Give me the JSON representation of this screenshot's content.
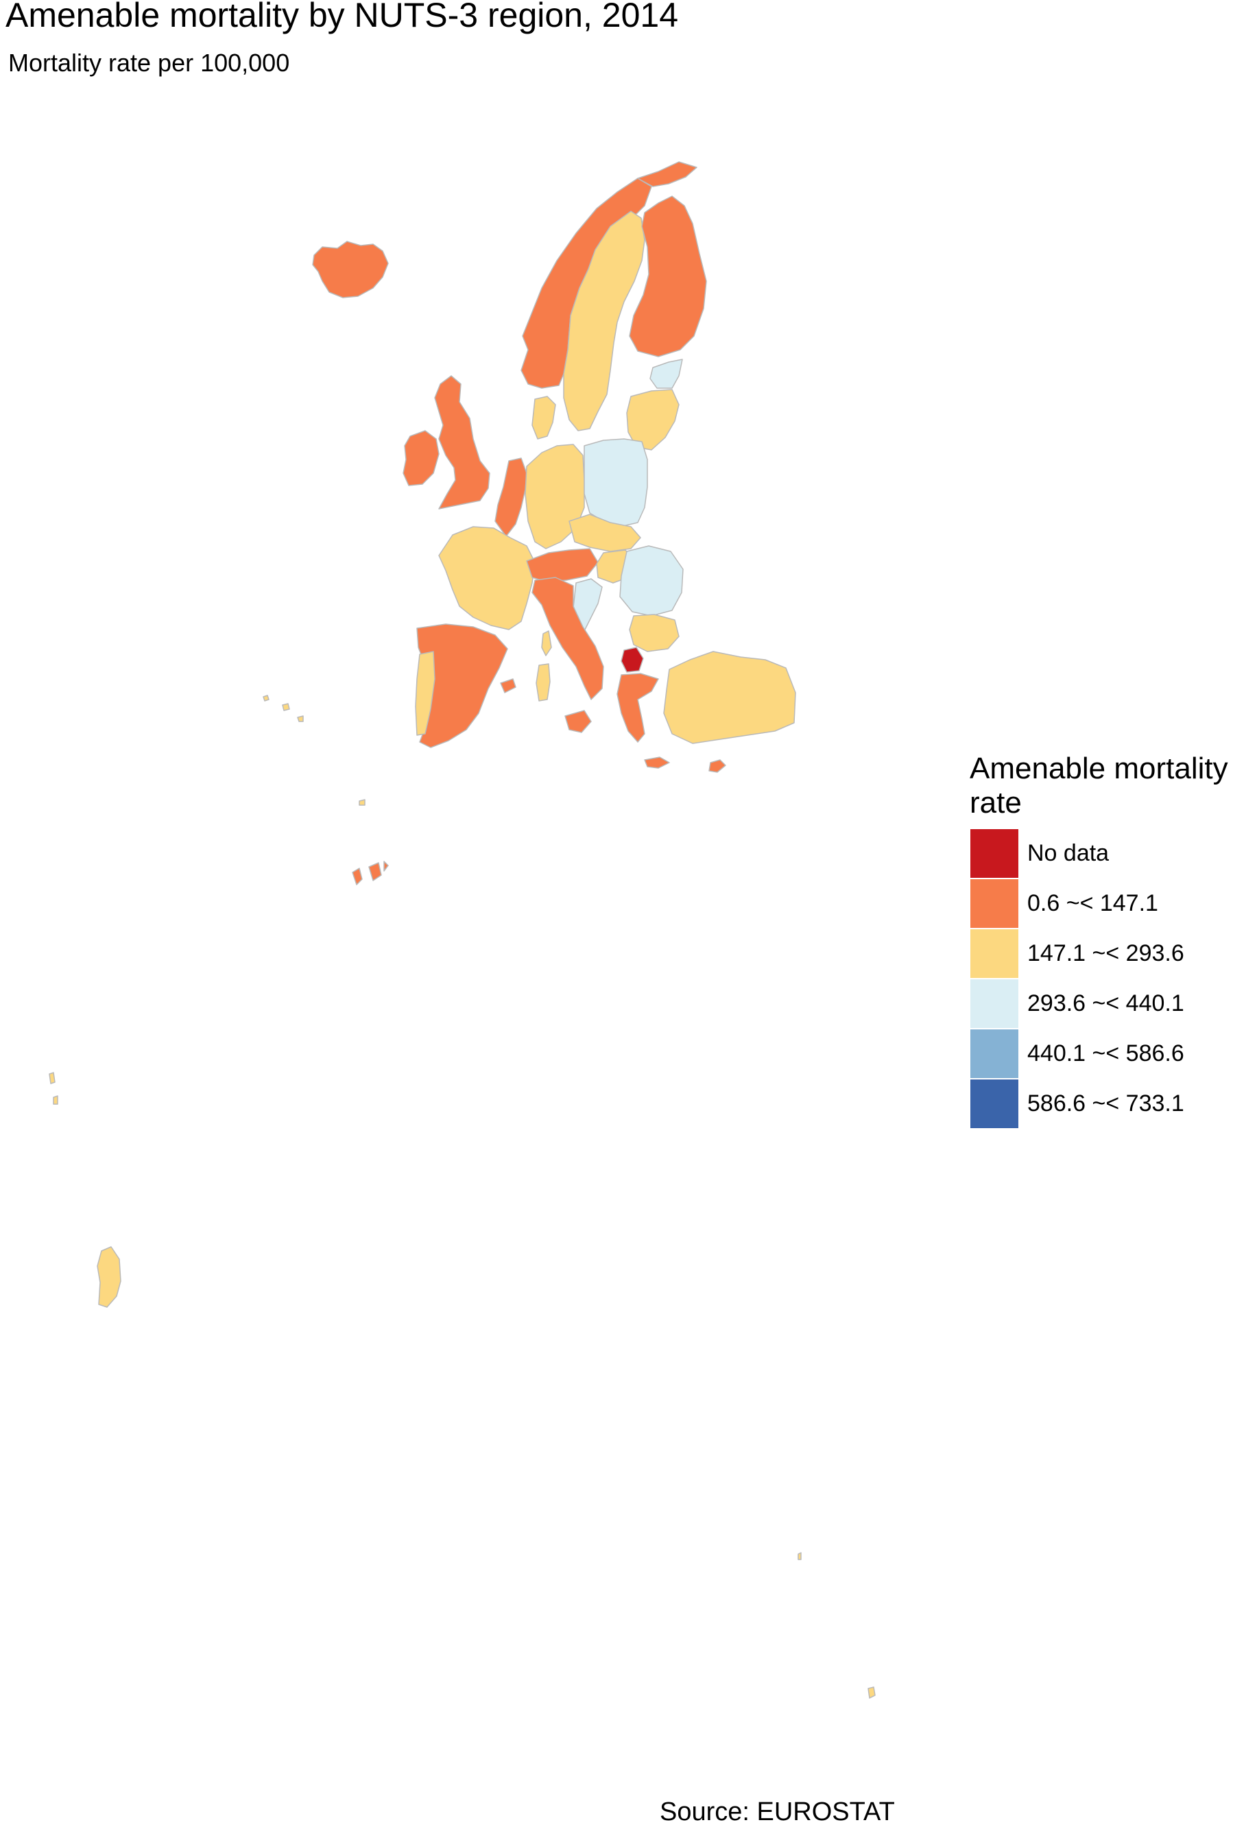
{
  "title": "Amenable mortality by NUTS-3 region, 2014",
  "subtitle": "Mortality rate per 100,000",
  "caption": "Source: EUROSTAT",
  "legend": {
    "title": "Amenable mortality rate",
    "items": [
      {
        "label": "No data",
        "color": "#c8181e"
      },
      {
        "label": "0.6 ~< 147.1",
        "color": "#f67c4a"
      },
      {
        "label": "147.1 ~< 293.6",
        "color": "#fcd880"
      },
      {
        "label": "293.6 ~< 440.1",
        "color": "#daeef4"
      },
      {
        "label": "440.1 ~< 586.6",
        "color": "#85b2d4"
      },
      {
        "label": "586.6 ~< 733.1",
        "color": "#3a64aa"
      }
    ]
  },
  "map_colors": {
    "no_data": "#c8181e",
    "class1": "#f67c4a",
    "class2": "#fcd880",
    "class3": "#daeef4",
    "border": "#b9b9b9"
  }
}
